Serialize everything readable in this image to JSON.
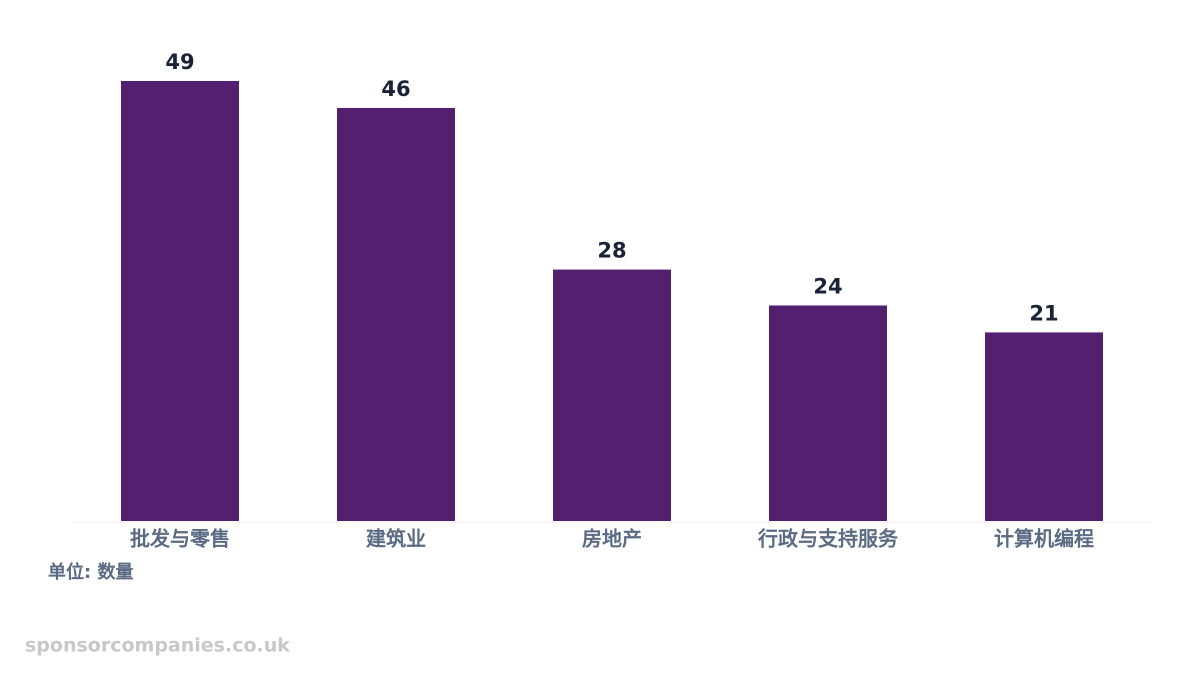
{
  "chart_data": {
    "type": "bar",
    "categories": [
      "批发与零售",
      "建筑业",
      "房地产",
      "行政与支持服务",
      "计算机编程"
    ],
    "values": [
      49,
      46,
      28,
      24,
      21
    ],
    "color": "#52206f",
    "ylim": [
      0,
      49
    ],
    "unit_label": "单位: 数量",
    "watermark": "sponsorcompanies.co.uk"
  }
}
